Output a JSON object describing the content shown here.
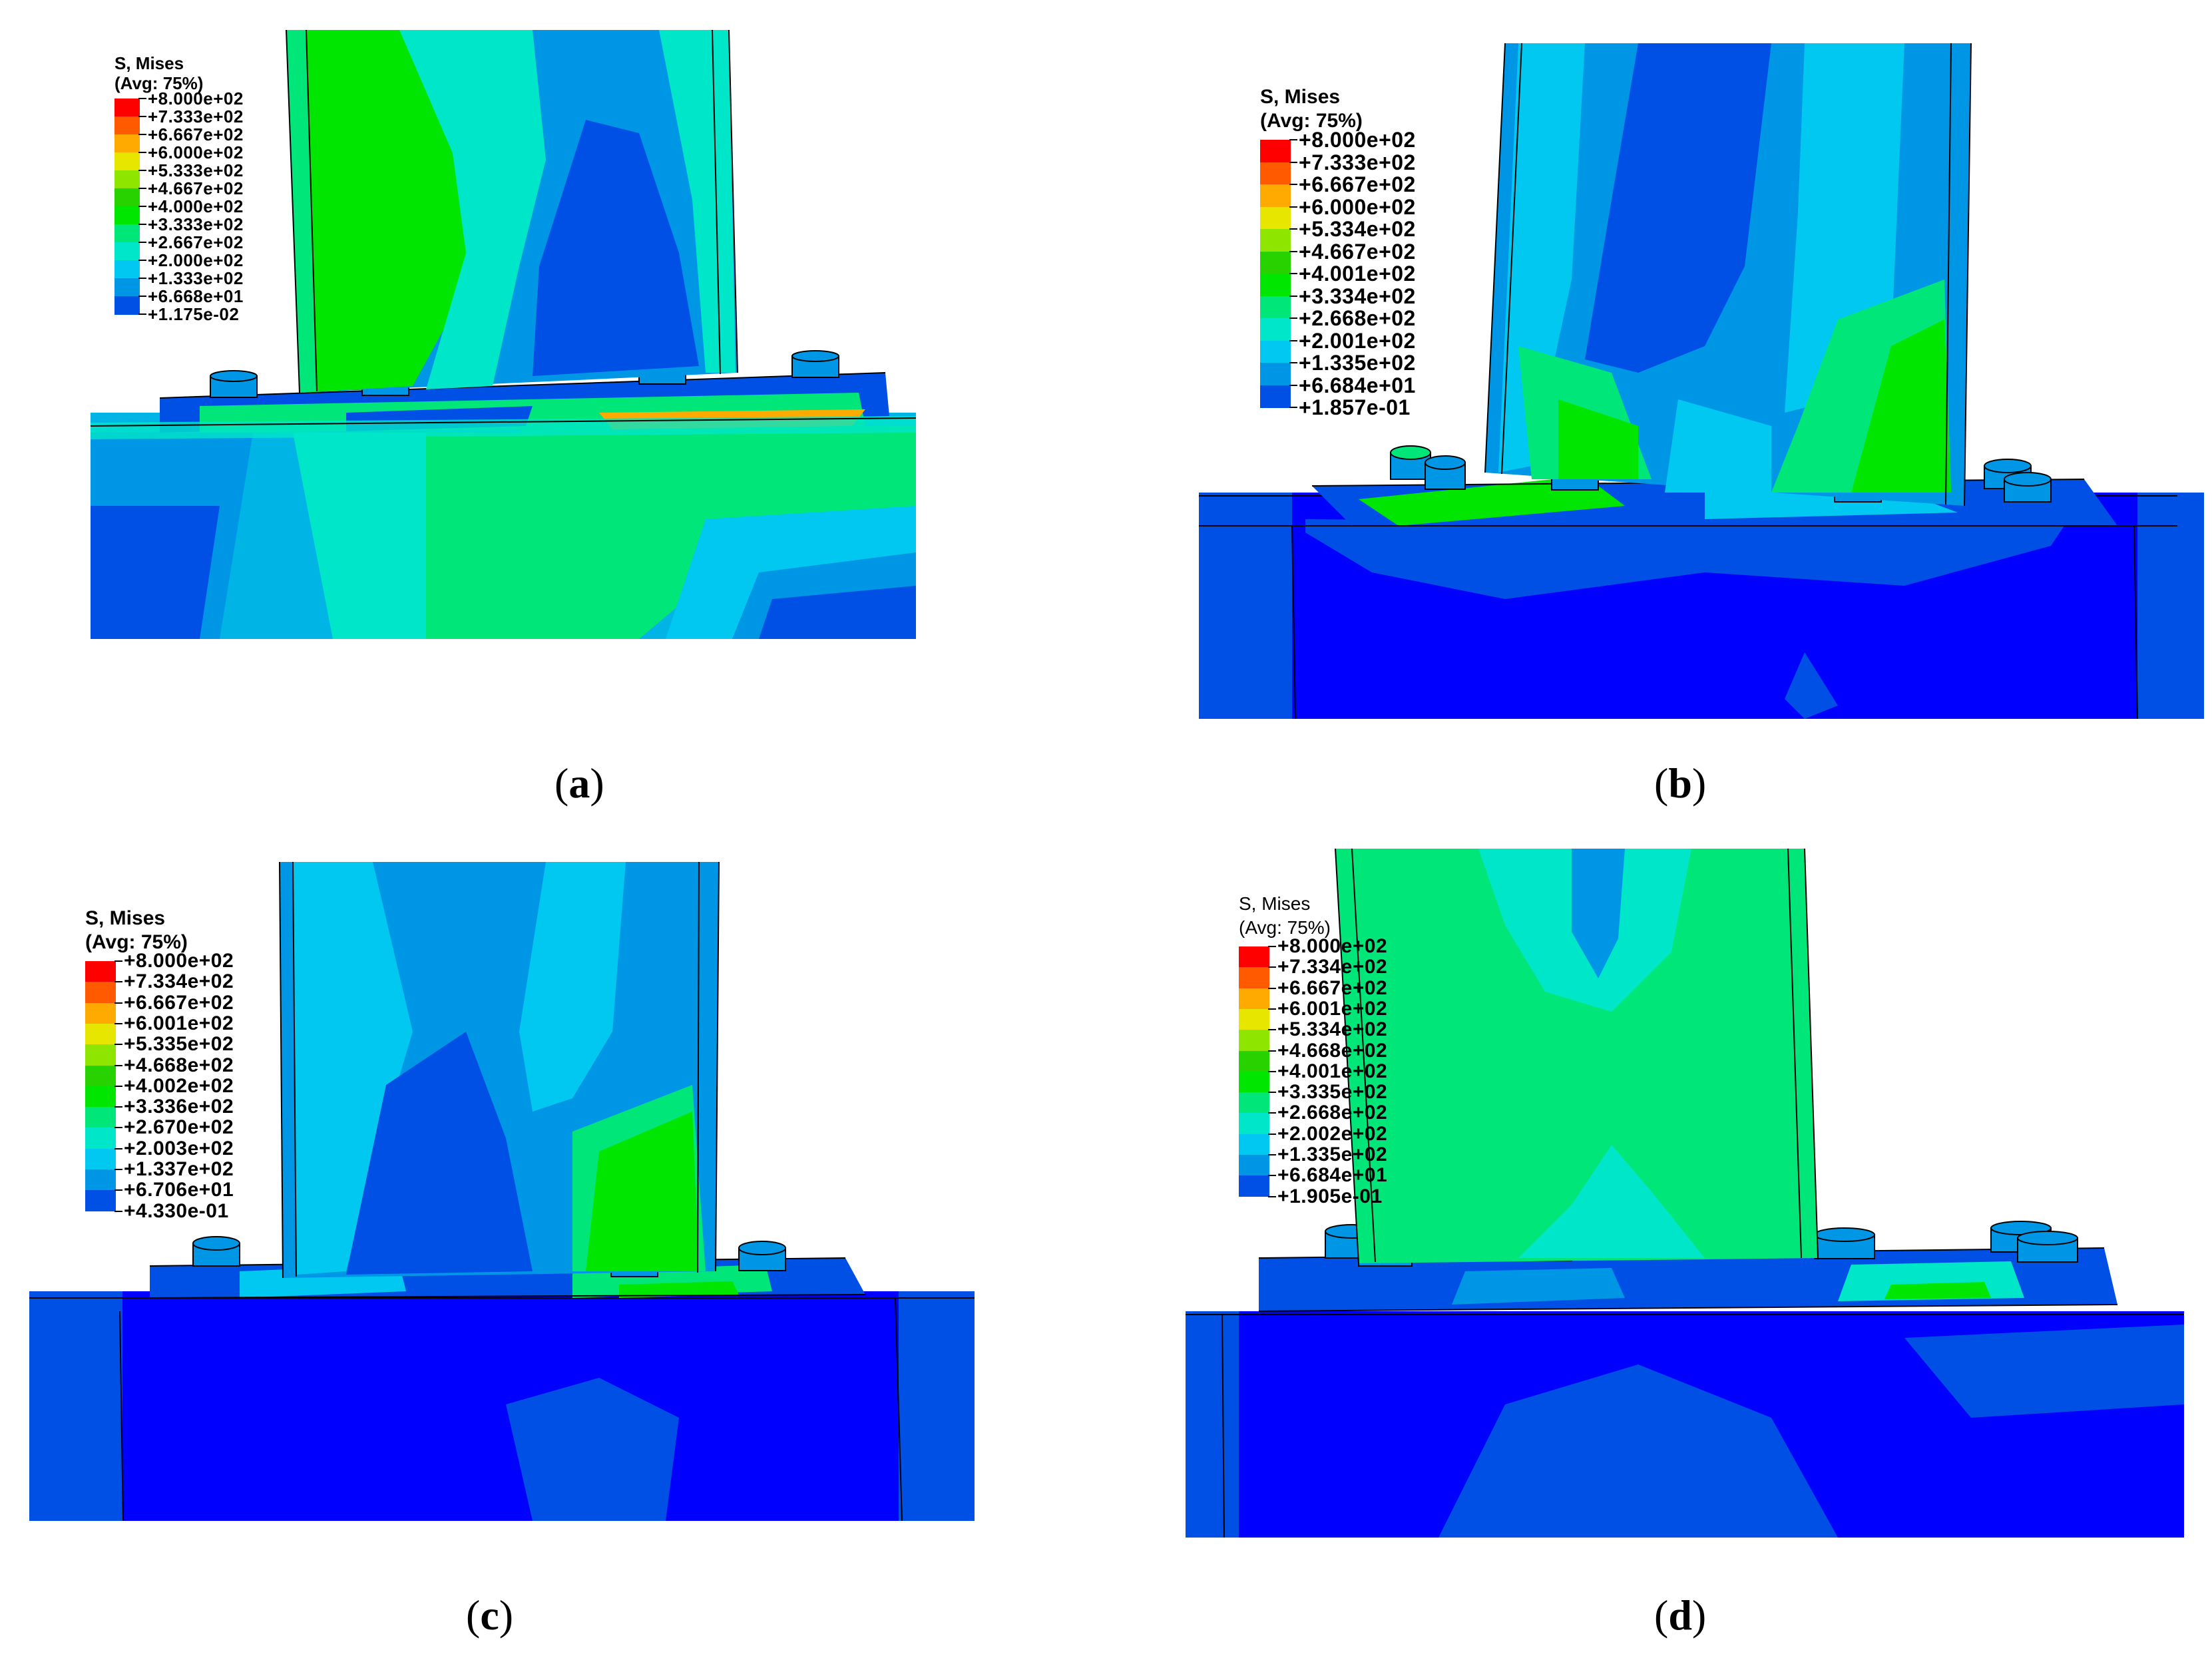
{
  "colors": [
    "#ff0000",
    "#ff5a00",
    "#ffaa00",
    "#e6e600",
    "#8ee600",
    "#28d200",
    "#00e600",
    "#00e678",
    "#00e6c8",
    "#00c8f0",
    "#0096e6",
    "#0050e6",
    "#0000ff"
  ],
  "panels": [
    {
      "id": "a",
      "caption_letter": "a",
      "legend": {
        "title_line1": "S, Mises",
        "title_line2": "(Avg: 75%)",
        "values": [
          "+8.000e+02",
          "+7.333e+02",
          "+6.667e+02",
          "+6.000e+02",
          "+5.333e+02",
          "+4.667e+02",
          "+4.000e+02",
          "+3.333e+02",
          "+2.667e+02",
          "+2.000e+02",
          "+1.333e+02",
          "+6.668e+01",
          "+1.175e-02"
        ]
      }
    },
    {
      "id": "b",
      "caption_letter": "b",
      "legend": {
        "title_line1": "S, Mises",
        "title_line2": "(Avg: 75%)",
        "values": [
          "+8.000e+02",
          "+7.333e+02",
          "+6.667e+02",
          "+6.000e+02",
          "+5.334e+02",
          "+4.667e+02",
          "+4.001e+02",
          "+3.334e+02",
          "+2.668e+02",
          "+2.001e+02",
          "+1.335e+02",
          "+6.684e+01",
          "+1.857e-01"
        ]
      }
    },
    {
      "id": "c",
      "caption_letter": "c",
      "legend": {
        "title_line1": "S, Mises",
        "title_line2": "(Avg: 75%)",
        "values": [
          "+8.000e+02",
          "+7.334e+02",
          "+6.667e+02",
          "+6.001e+02",
          "+5.335e+02",
          "+4.668e+02",
          "+4.002e+02",
          "+3.336e+02",
          "+2.670e+02",
          "+2.003e+02",
          "+1.337e+02",
          "+6.706e+01",
          "+4.330e-01"
        ]
      }
    },
    {
      "id": "d",
      "caption_letter": "d",
      "legend": {
        "title_line1": "S, Mises",
        "title_line2": "(Avg: 75%)",
        "values": [
          "+8.000e+02",
          "+7.334e+02",
          "+6.667e+02",
          "+6.001e+02",
          "+5.334e+02",
          "+4.668e+02",
          "+4.001e+02",
          "+3.335e+02",
          "+2.668e+02",
          "+2.002e+02",
          "+1.335e+02",
          "+6.684e+01",
          "+1.905e-01"
        ]
      }
    }
  ]
}
